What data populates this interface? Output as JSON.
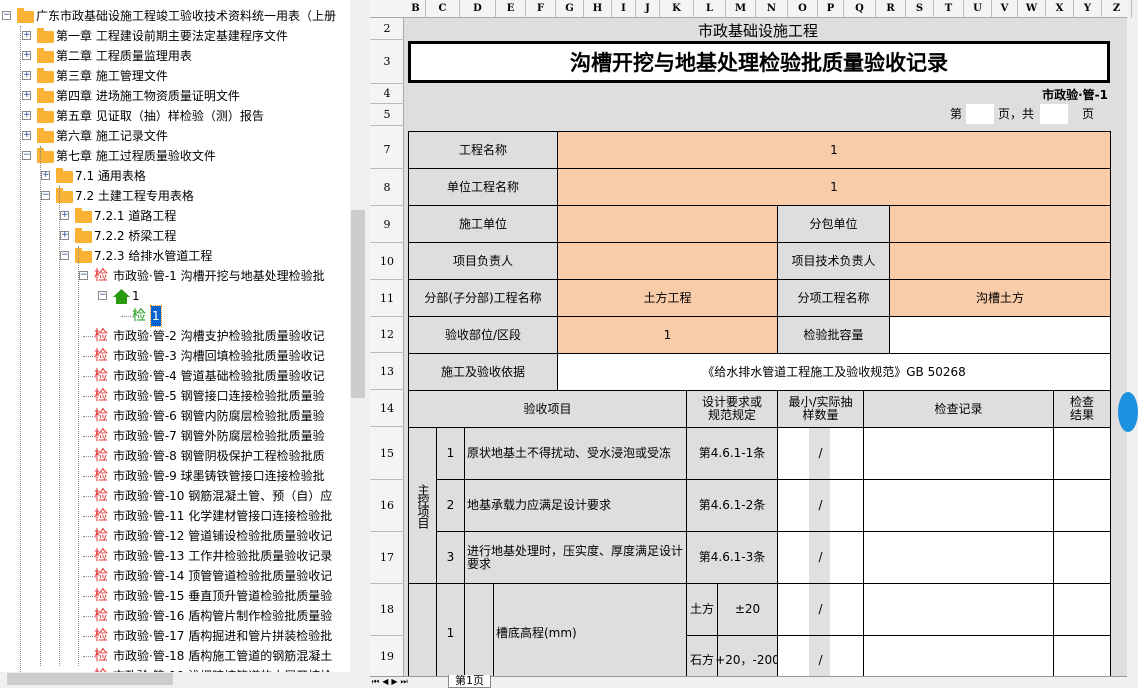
{
  "tree": [
    {
      "level": 0,
      "exp": "minus",
      "icon": "folder",
      "label": "广东市政基础设施工程竣工验收技术资料统一用表（上册"
    },
    {
      "level": 1,
      "exp": "plus",
      "icon": "folder",
      "label": "第一章 工程建设前期主要法定基建程序文件"
    },
    {
      "level": 1,
      "exp": "plus",
      "icon": "folder",
      "label": "第二章 工程质量监理用表"
    },
    {
      "level": 1,
      "exp": "plus",
      "icon": "folder",
      "label": "第三章 施工管理文件"
    },
    {
      "level": 1,
      "exp": "plus",
      "icon": "folder",
      "label": "第四章 进场施工物资质量证明文件"
    },
    {
      "level": 1,
      "exp": "plus",
      "icon": "folder",
      "label": "第五章 见证取（抽）样检验（测）报告"
    },
    {
      "level": 1,
      "exp": "plus",
      "icon": "folder",
      "label": "第六章 施工记录文件"
    },
    {
      "level": 1,
      "exp": "minus",
      "icon": "folder",
      "label": "第七章 施工过程质量验收文件"
    },
    {
      "level": 2,
      "exp": "plus",
      "icon": "folder",
      "label": "7.1 通用表格"
    },
    {
      "level": 2,
      "exp": "minus",
      "icon": "folder",
      "label": "7.2 土建工程专用表格"
    },
    {
      "level": 3,
      "exp": "plus",
      "icon": "folder",
      "label": "7.2.1 道路工程"
    },
    {
      "level": 3,
      "exp": "plus",
      "icon": "folder",
      "label": "7.2.2 桥梁工程"
    },
    {
      "level": 3,
      "exp": "minus",
      "icon": "folder",
      "label": "7.2.3 给排水管道工程"
    },
    {
      "level": 4,
      "exp": "minus",
      "icon": "jian",
      "label": "市政验·管-1 沟槽开挖与地基处理检验批"
    },
    {
      "level": 5,
      "exp": "minus",
      "icon": "home",
      "label": "1"
    },
    {
      "level": 6,
      "exp": "",
      "icon": "jian-green",
      "label": "1",
      "selected": true
    },
    {
      "level": 4,
      "exp": "",
      "icon": "jian",
      "label": "市政验·管-2 沟槽支护检验批质量验收记"
    },
    {
      "level": 4,
      "exp": "",
      "icon": "jian",
      "label": "市政验·管-3 沟槽回填检验批质量验收记"
    },
    {
      "level": 4,
      "exp": "",
      "icon": "jian",
      "label": "市政验·管-4 管道基础检验批质量验收记"
    },
    {
      "level": 4,
      "exp": "",
      "icon": "jian",
      "label": "市政验·管-5 钢管接口连接检验批质量验"
    },
    {
      "level": 4,
      "exp": "",
      "icon": "jian",
      "label": "市政验·管-6 钢管内防腐层检验批质量验"
    },
    {
      "level": 4,
      "exp": "",
      "icon": "jian",
      "label": "市政验·管-7 钢管外防腐层检验批质量验"
    },
    {
      "level": 4,
      "exp": "",
      "icon": "jian",
      "label": "市政验·管-8 钢管阴极保护工程检验批质"
    },
    {
      "level": 4,
      "exp": "",
      "icon": "jian",
      "label": "市政验·管-9 球墨铸铁管接口连接检验批"
    },
    {
      "level": 4,
      "exp": "",
      "icon": "jian",
      "label": "市政验·管-10 钢筋混凝土管、预（自）应"
    },
    {
      "level": 4,
      "exp": "",
      "icon": "jian",
      "label": "市政验·管-11 化学建材管接口连接检验批"
    },
    {
      "level": 4,
      "exp": "",
      "icon": "jian",
      "label": "市政验·管-12 管道铺设检验批质量验收记"
    },
    {
      "level": 4,
      "exp": "",
      "icon": "jian",
      "label": "市政验·管-13 工作井检验批质量验收记录"
    },
    {
      "level": 4,
      "exp": "",
      "icon": "jian",
      "label": "市政验·管-14 顶管管道检验批质量验收记"
    },
    {
      "level": 4,
      "exp": "",
      "icon": "jian",
      "label": "市政验·管-15 垂直顶升管道检验批质量验"
    },
    {
      "level": 4,
      "exp": "",
      "icon": "jian",
      "label": "市政验·管-16 盾构管片制作检验批质量验"
    },
    {
      "level": 4,
      "exp": "",
      "icon": "jian",
      "label": "市政验·管-17 盾构掘进和管片拼装检验批"
    },
    {
      "level": 4,
      "exp": "",
      "icon": "jian",
      "label": "市政验·管-18 盾构施工管道的钢筋混凝土"
    },
    {
      "level": 4,
      "exp": "",
      "icon": "jian",
      "label": "市政验·管-19 浅埋暗挖管道的土层开挖检"
    }
  ],
  "icon_glyphs": {
    "jian": "检"
  },
  "columns": [
    "B",
    "C",
    "D",
    "E",
    "F",
    "G",
    "H",
    "I",
    "J",
    "K",
    "L",
    "M",
    "N",
    "O",
    "P",
    "Q",
    "R",
    "S",
    "T",
    "U",
    "V",
    "W",
    "X",
    "Y",
    "Z"
  ],
  "rows": [
    "2",
    "3",
    "4",
    "5",
    "7",
    "8",
    "9",
    "10",
    "11",
    "12",
    "13",
    "14",
    "15",
    "16",
    "17",
    "18",
    "19"
  ],
  "sheet": {
    "org": "市政基础设施工程",
    "title": "沟槽开挖与地基处理检验批质量验收记录",
    "code": "市政验·管-1",
    "page_prefix": "第",
    "page_mid": "页，共",
    "page_suffix": "页",
    "project_name_label": "工程名称",
    "project_name": "1",
    "unit_project_label": "单位工程名称",
    "unit_project": "1",
    "contractor_label": "施工单位",
    "contractor": "",
    "subcontractor_label": "分包单位",
    "subcontractor": "",
    "pm_label": "项目负责人",
    "pm": "",
    "tech_lead_label": "项目技术负责人",
    "tech_lead": "",
    "division_label": "分部(子分部)工程名称",
    "division": "土方工程",
    "subitem_label": "分项工程名称",
    "subitem": "沟槽土方",
    "location_label": "验收部位/区段",
    "location": "1",
    "capacity_label": "检验批容量",
    "capacity": "",
    "basis_label": "施工及验收依据",
    "basis": "《给水排水管道工程施工及验收规范》GB 50268",
    "hdr_item": "验收项目",
    "hdr_design": "设计要求或规范规定",
    "hdr_sample": "最小/实际抽样数量",
    "hdr_record": "检查记录",
    "hdr_result": "检查结果",
    "main_group": "主控项目",
    "main_items": [
      {
        "no": "1",
        "text": "原状地基土不得扰动、受水浸泡或受冻",
        "ref": "第4.6.1-1条",
        "sample": "/"
      },
      {
        "no": "2",
        "text": "地基承载力应满足设计要求",
        "ref": "第4.6.1-2条",
        "sample": "/"
      },
      {
        "no": "3",
        "text": "进行地基处理时，压实度、厚度满足设计要求",
        "ref": "第4.6.1-3条",
        "sample": "/"
      }
    ],
    "general_item": {
      "no": "1",
      "text": "槽底高程(mm)",
      "sub": [
        {
          "type": "土方",
          "tol": "±20",
          "sample": "/"
        },
        {
          "type": "石方",
          "tol": "+20，-200",
          "sample": "/"
        }
      ]
    }
  },
  "sheet_tab": "第1页"
}
